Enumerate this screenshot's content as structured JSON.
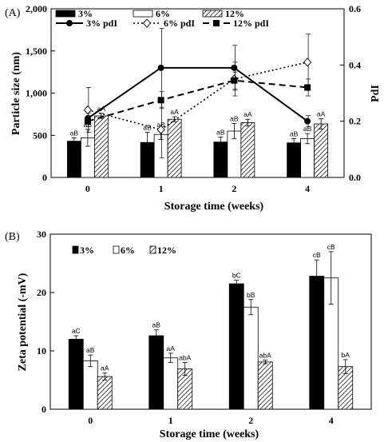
{
  "chart_data": [
    {
      "type": "bar",
      "panel_label": "(A)",
      "categories": [
        "0",
        "1",
        "2",
        "4"
      ],
      "xlabel": "Storage  time (weeks)",
      "ylabel": "Particle size (nm)",
      "ylim": [
        0,
        2000
      ],
      "y_ticks": [
        "0",
        "500",
        "1,000",
        "1,500",
        "2,000"
      ],
      "y2label": "PdI",
      "y2lim": [
        0,
        0.6
      ],
      "y2_ticks": [
        "0.0",
        "0.2",
        "0.4",
        "0.6"
      ],
      "series": [
        {
          "name": "3%",
          "style": "solid",
          "color": "#000000",
          "values": [
            430,
            415,
            420,
            410
          ],
          "errors": [
            40,
            120,
            60,
            50
          ],
          "labels": [
            "aB",
            "aB",
            "aB",
            "aB"
          ]
        },
        {
          "name": "6%",
          "style": "open",
          "color": "#ffffff",
          "values": [
            470,
            510,
            550,
            460
          ],
          "errors": [
            100,
            60,
            90,
            60
          ],
          "labels": [
            "aB",
            "aB",
            "aB",
            "aB"
          ]
        },
        {
          "name": "12%",
          "style": "hatched",
          "color": "#ffffff",
          "values": [
            730,
            690,
            650,
            635
          ],
          "errors": [
            30,
            30,
            40,
            60
          ],
          "labels": [
            "aA",
            "aA",
            "aA",
            "aA"
          ]
        }
      ],
      "lines": [
        {
          "name": "3% pdI",
          "dash": "solid",
          "marker": "circle",
          "values": [
            0.21,
            0.39,
            0.39,
            0.2
          ],
          "errors": [
            0.02,
            0.14,
            0.08,
            0.02
          ]
        },
        {
          "name": "6% pdI",
          "dash": "dotted",
          "marker": "diamond",
          "values": [
            0.24,
            0.17,
            0.35,
            0.41
          ],
          "errors": [
            0.08,
            0.1,
            0.06,
            0.1
          ]
        },
        {
          "name": "12% pdI",
          "dash": "dashed",
          "marker": "square",
          "values": [
            0.2,
            0.275,
            0.345,
            0.32
          ],
          "errors": [
            0.02,
            0.03,
            0.03,
            0.03
          ]
        }
      ],
      "legend_position": "top-left",
      "grid": false
    },
    {
      "type": "bar",
      "panel_label": "(B)",
      "categories": [
        "0",
        "1",
        "2",
        "4"
      ],
      "xlabel": "Storage  time (weeks)",
      "ylabel": "Zeta potential (-mV)",
      "ylim": [
        0,
        30
      ],
      "y_ticks": [
        "0",
        "10",
        "20",
        "30"
      ],
      "series": [
        {
          "name": "3%",
          "style": "solid",
          "color": "#000000",
          "values": [
            12.0,
            12.6,
            21.5,
            22.8
          ],
          "errors": [
            0.6,
            1.0,
            0.6,
            2.8
          ],
          "labels": [
            "aC",
            "aB",
            "bC",
            "cB"
          ]
        },
        {
          "name": "6%",
          "style": "open",
          "color": "#ffffff",
          "values": [
            8.3,
            8.8,
            17.5,
            22.5
          ],
          "errors": [
            1.0,
            0.8,
            1.3,
            4.5
          ],
          "labels": [
            "aB",
            "aA",
            "bB",
            "cB"
          ]
        },
        {
          "name": "12%",
          "style": "hatched",
          "color": "#ffffff",
          "values": [
            5.6,
            6.9,
            8.1,
            7.3
          ],
          "errors": [
            0.6,
            1.1,
            0.3,
            1.2
          ],
          "labels": [
            "aA",
            "abA",
            "abA",
            "bA"
          ]
        }
      ],
      "legend_position": "top-left",
      "grid": false
    }
  ]
}
